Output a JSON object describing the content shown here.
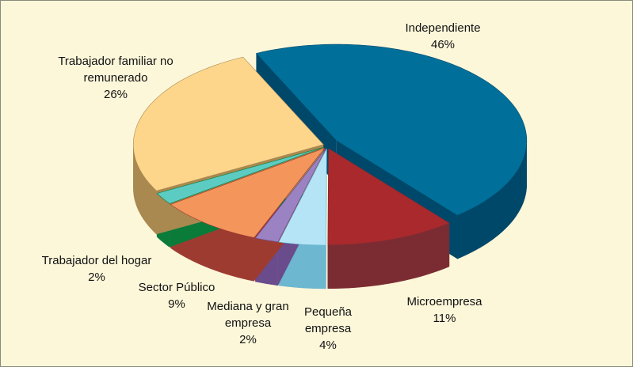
{
  "chart_data": {
    "type": "pie3d",
    "categories": [
      "Independiente",
      "Microempresa",
      "Pequeña empresa",
      "Mediana y gran empresa",
      "Sector Público",
      "Trabajador del hogar",
      "Trabajador familiar no remunerado"
    ],
    "values": [
      46,
      11,
      4,
      2,
      9,
      2,
      26
    ],
    "value_labels": [
      "46%",
      "11%",
      "4%",
      "2%",
      "9%",
      "2%",
      "26%"
    ],
    "colors": [
      "#00709a",
      "#a9292d",
      "#b5e4f6",
      "#9b82c2",
      "#f4965c",
      "#5ccbc2",
      "#fdd68c"
    ],
    "side_colors": [
      "#00486a",
      "#7b2c33",
      "#6db7d0",
      "#6a4b8c",
      "#9e3b31",
      "#0b7b3a",
      "#a98950"
    ]
  }
}
